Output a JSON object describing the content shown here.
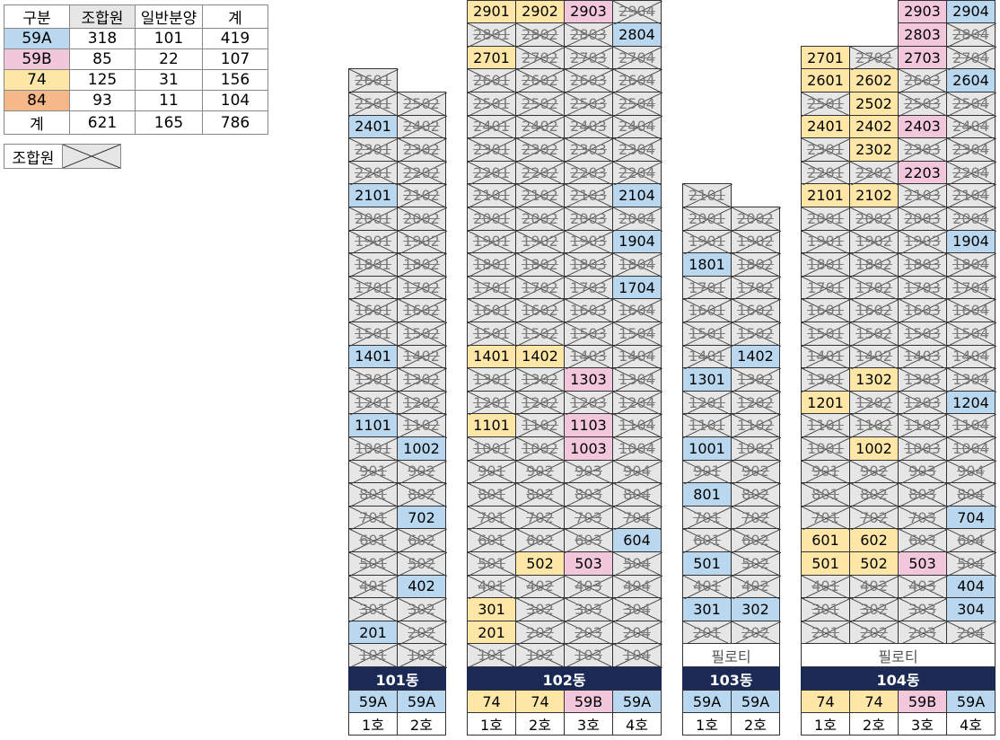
{
  "colors": {
    "59A": "#b9d8ef",
    "59B": "#f2c7dc",
    "74": "#fde6a6",
    "84": "#f6b889",
    "member": "#e6e6e6",
    "header": "#1a2a55"
  },
  "legend": {
    "header": [
      "구분",
      "조합원",
      "일반분양",
      "계"
    ],
    "rows": [
      {
        "type": "59A",
        "vals": [
          "318",
          "101",
          "419"
        ]
      },
      {
        "type": "59B",
        "vals": [
          "85",
          "22",
          "107"
        ]
      },
      {
        "type": "74",
        "vals": [
          "125",
          "31",
          "156"
        ]
      },
      {
        "type": "84",
        "vals": [
          "93",
          "11",
          "104"
        ]
      },
      {
        "type": "계",
        "vals": [
          "621",
          "165",
          "786"
        ]
      }
    ],
    "member_label": "조합원"
  },
  "buildings": [
    {
      "name": "101동",
      "units": [
        "1호",
        "2호"
      ],
      "types": [
        "59A",
        "59A"
      ],
      "top_floor": 26,
      "pilotis": "",
      "tops": [
        26,
        25
      ],
      "colored": {
        "2401": "59A",
        "2101": "59A",
        "1401": "59A",
        "1101": "59A",
        "1002": "59A",
        "702": "59A",
        "402": "59A",
        "201": "59A"
      }
    },
    {
      "name": "102동",
      "units": [
        "1호",
        "2호",
        "3호",
        "4호"
      ],
      "types": [
        "74",
        "74",
        "59B",
        "59A"
      ],
      "top_floor": 29,
      "pilotis": "",
      "tops": [
        29,
        29,
        29,
        29
      ],
      "colored": {
        "2901": "74",
        "2902": "74",
        "2903": "59B",
        "2804": "59A",
        "2701": "74",
        "2104": "59A",
        "1904": "59A",
        "1704": "59A",
        "1401": "74",
        "1402": "74",
        "1303": "59B",
        "1101": "74",
        "1103": "59B",
        "1003": "59B",
        "604": "59A",
        "502": "74",
        "503": "59B",
        "301": "74",
        "201": "74"
      }
    },
    {
      "name": "103동",
      "units": [
        "1호",
        "2호"
      ],
      "types": [
        "59A",
        "59A"
      ],
      "top_floor": 21,
      "pilotis": "필로티",
      "tops": [
        21,
        20
      ],
      "colored": {
        "1801": "59A",
        "1402": "59A",
        "1301": "59A",
        "1001": "59A",
        "801": "59A",
        "501": "59A",
        "301": "59A",
        "302": "59A"
      }
    },
    {
      "name": "104동",
      "units": [
        "1호",
        "2호",
        "3호",
        "4호"
      ],
      "types": [
        "74",
        "74",
        "59B",
        "59A"
      ],
      "top_floor": 29,
      "pilotis": "필로티",
      "tops": [
        27,
        27,
        29,
        29
      ],
      "colored": {
        "2903": "59B",
        "2904": "59A",
        "2803": "59B",
        "2701": "74",
        "2703": "59B",
        "2601": "74",
        "2602": "74",
        "2604": "59A",
        "2502": "74",
        "2401": "74",
        "2402": "74",
        "2403": "59B",
        "2302": "74",
        "2203": "59B",
        "2101": "74",
        "2102": "74",
        "1904": "59A",
        "1302": "74",
        "1201": "74",
        "1204": "59A",
        "1002": "74",
        "704": "59A",
        "601": "74",
        "602": "74",
        "501": "74",
        "502": "74",
        "503": "59B",
        "404": "59A",
        "304": "59A"
      }
    }
  ]
}
